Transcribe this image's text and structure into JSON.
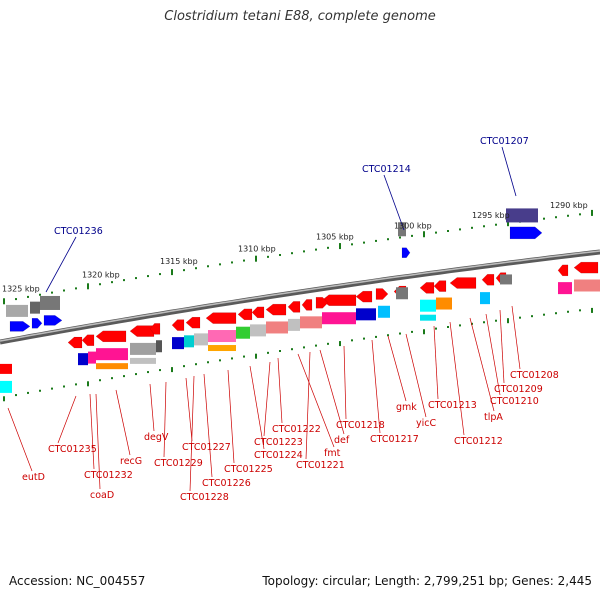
{
  "title": "Clostridium tetani E88, complete genome",
  "footer": {
    "accession": "Accession: NC_004557",
    "topology": "Topology: circular; Length: 2,799,251 bp; Genes: 2,445"
  },
  "colors": {
    "backbone": "#8c8c8c",
    "tick": "#1a7a1a",
    "gene_label": "#cc0000",
    "highlight_label": "#00008b"
  },
  "kbp_labels": [
    "1325 kbp",
    "1320 kbp",
    "1315 kbp",
    "1310 kbp",
    "1305 kbp",
    "1300 kbp",
    "1295 kbp",
    "1290 kbp"
  ],
  "highlight_labels": [
    "CTC01236",
    "CTC01214",
    "CTC01207"
  ],
  "gene_labels": [
    "eutD",
    "CTC01235",
    "CTC01232",
    "coaD",
    "recG",
    "degV",
    "CTC01229",
    "CTC01227",
    "CTC01228",
    "CTC01226",
    "CTC01225",
    "CTC01224",
    "CTC01223",
    "CTC01222",
    "fmt",
    "CTC01221",
    "def",
    "CTC01218",
    "CTC01217",
    "gmk",
    "yicC",
    "CTC01213",
    "CTC01212",
    "tlpA",
    "CTC01210",
    "CTC01209",
    "CTC01208"
  ]
}
